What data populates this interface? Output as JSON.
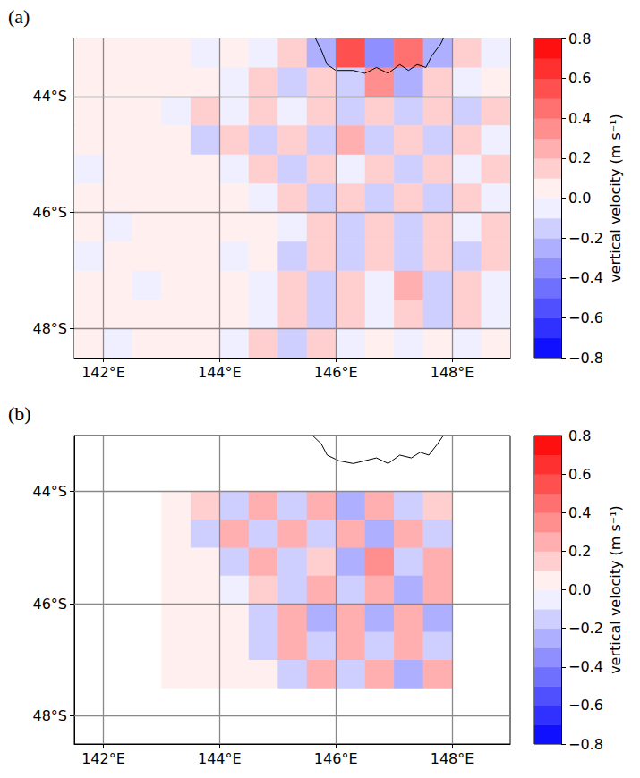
{
  "chart_data": [
    {
      "type": "heatmap",
      "title": "(a)",
      "x": [
        141.75,
        142.25,
        142.75,
        143.25,
        143.75,
        144.25,
        144.75,
        145.25,
        145.75,
        146.25,
        146.75,
        147.25,
        147.75,
        148.25,
        148.75
      ],
      "y": [
        -43.25,
        -43.75,
        -44.25,
        -44.75,
        -45.25,
        -45.75,
        -46.25,
        -46.75,
        -47.25,
        -47.75,
        -48.25
      ],
      "values": [
        [
          0.02,
          0.02,
          0.03,
          0.05,
          -0.1,
          0.08,
          -0.1,
          0.12,
          -0.3,
          0.5,
          -0.4,
          0.45,
          -0.3,
          0.1,
          -0.08
        ],
        [
          0.02,
          0.01,
          0.02,
          0.04,
          0.06,
          -0.08,
          0.1,
          -0.12,
          0.15,
          -0.2,
          0.3,
          -0.25,
          0.12,
          -0.1,
          0.08
        ],
        [
          0.02,
          0.02,
          0.02,
          -0.06,
          0.15,
          -0.1,
          0.12,
          -0.1,
          0.15,
          -0.12,
          0.18,
          -0.15,
          0.1,
          -0.12,
          0.1
        ],
        [
          0.02,
          0.02,
          0.02,
          0.03,
          -0.2,
          0.15,
          -0.12,
          0.1,
          -0.14,
          0.2,
          -0.15,
          0.12,
          -0.18,
          0.15,
          -0.1
        ],
        [
          -0.02,
          0.02,
          0.02,
          0.02,
          0.05,
          -0.08,
          0.12,
          -0.15,
          0.18,
          -0.1,
          0.15,
          -0.2,
          0.12,
          -0.1,
          0.15
        ],
        [
          0.02,
          0.01,
          0.02,
          0.02,
          0.03,
          0.05,
          -0.1,
          0.12,
          -0.15,
          0.12,
          -0.18,
          0.15,
          -0.12,
          0.18,
          -0.1
        ],
        [
          0.02,
          -0.02,
          0.02,
          0.02,
          0.02,
          0.04,
          0.06,
          -0.1,
          0.12,
          -0.15,
          0.1,
          -0.12,
          0.15,
          -0.1,
          0.12
        ],
        [
          -0.02,
          0.02,
          0.02,
          0.02,
          0.03,
          -0.05,
          0.08,
          -0.12,
          0.1,
          -0.15,
          0.18,
          -0.12,
          0.1,
          -0.15,
          0.1
        ],
        [
          0.02,
          0.02,
          -0.02,
          0.02,
          0.02,
          0.05,
          -0.08,
          0.1,
          -0.12,
          0.15,
          -0.1,
          0.2,
          -0.15,
          0.12,
          -0.1
        ],
        [
          0.02,
          0.02,
          0.02,
          0.02,
          0.03,
          0.04,
          -0.06,
          0.1,
          -0.15,
          0.12,
          -0.1,
          0.12,
          -0.15,
          0.1,
          -0.08
        ],
        [
          0.02,
          -0.02,
          0.02,
          0.02,
          0.04,
          -0.1,
          0.15,
          -0.12,
          0.1,
          -0.08,
          0.06,
          -0.08,
          0.05,
          -0.04,
          0.03
        ]
      ],
      "xlim": [
        141.5,
        149
      ],
      "ylim": [
        -48.5,
        -43
      ],
      "xticks": [
        {
          "value": 142,
          "label": "142°E"
        },
        {
          "value": 144,
          "label": "144°E"
        },
        {
          "value": 146,
          "label": "146°E"
        },
        {
          "value": 148,
          "label": "148°E"
        }
      ],
      "yticks": [
        {
          "value": -48,
          "label": "48°S"
        },
        {
          "value": -46,
          "label": "46°S"
        },
        {
          "value": -44,
          "label": "44°S"
        }
      ],
      "grid": true,
      "coastline": [
        [
          145.65,
          -43.0
        ],
        [
          145.75,
          -43.2
        ],
        [
          145.85,
          -43.45
        ],
        [
          146.0,
          -43.55
        ],
        [
          146.3,
          -43.55
        ],
        [
          146.5,
          -43.6
        ],
        [
          146.7,
          -43.5
        ],
        [
          146.9,
          -43.6
        ],
        [
          147.1,
          -43.45
        ],
        [
          147.25,
          -43.55
        ],
        [
          147.4,
          -43.45
        ],
        [
          147.55,
          -43.5
        ],
        [
          147.65,
          -43.3
        ],
        [
          147.8,
          -43.1
        ],
        [
          147.85,
          -43.0
        ]
      ],
      "colorbar": {
        "label": "vertical velocity (m s⁻¹)",
        "range": [
          -0.8,
          0.8
        ],
        "ticks": [
          {
            "value": -0.8,
            "label": "−0.8"
          },
          {
            "value": -0.6,
            "label": "−0.6"
          },
          {
            "value": -0.4,
            "label": "−0.4"
          },
          {
            "value": -0.2,
            "label": "−0.2"
          },
          {
            "value": 0,
            "label": "0.0"
          },
          0.2,
          0.4,
          0.6,
          0.8
        ],
        "levels": [
          -0.8,
          -0.7,
          -0.6,
          -0.5,
          -0.4,
          -0.3,
          -0.2,
          -0.1,
          0,
          0.1,
          0.2,
          0.3,
          0.4,
          0.5,
          0.6,
          0.7,
          0.8
        ],
        "colors": [
          "#1010ff",
          "#3030ff",
          "#5050ff",
          "#7070ff",
          "#8f8fff",
          "#afafff",
          "#cfcfff",
          "#efefff",
          "#ffefef",
          "#ffcfcf",
          "#ffafaf",
          "#ff8f8f",
          "#ff7070",
          "#ff5050",
          "#ff3030",
          "#ff1010"
        ]
      }
    },
    {
      "type": "heatmap",
      "title": "(b)",
      "x": [
        143.25,
        143.75,
        144.25,
        144.75,
        145.25,
        145.75,
        146.25,
        146.75,
        147.25,
        147.75
      ],
      "y": [
        -44.25,
        -44.75,
        -45.25,
        -45.75,
        -46.25,
        -46.75,
        -47.25
      ],
      "values": [
        [
          0.05,
          0.15,
          -0.2,
          0.2,
          -0.15,
          0.2,
          -0.25,
          0.2,
          -0.2,
          0.15
        ],
        [
          0.05,
          -0.15,
          0.2,
          -0.2,
          0.25,
          -0.2,
          0.2,
          -0.3,
          0.25,
          -0.2
        ],
        [
          0.03,
          0.08,
          -0.2,
          0.25,
          -0.2,
          0.15,
          -0.25,
          0.3,
          -0.2,
          0.25
        ],
        [
          0.02,
          0.05,
          -0.1,
          0.15,
          -0.2,
          0.25,
          -0.2,
          0.2,
          -0.3,
          0.2
        ],
        [
          0.02,
          0.03,
          0.05,
          -0.2,
          0.2,
          -0.25,
          0.2,
          -0.25,
          0.2,
          -0.25
        ],
        [
          0.02,
          0.02,
          0.04,
          -0.15,
          0.2,
          -0.2,
          0.25,
          -0.2,
          0.2,
          -0.15
        ],
        [
          0.02,
          0.02,
          0.03,
          0.05,
          -0.2,
          0.25,
          -0.2,
          0.2,
          -0.25,
          0.2
        ]
      ],
      "xlim": [
        141.5,
        149
      ],
      "ylim": [
        -48.5,
        -43
      ],
      "xticks": [
        {
          "value": 142,
          "label": "142°E"
        },
        {
          "value": 144,
          "label": "144°E"
        },
        {
          "value": 146,
          "label": "146°E"
        },
        {
          "value": 148,
          "label": "148°E"
        }
      ],
      "yticks": [
        {
          "value": -48,
          "label": "48°S"
        },
        {
          "value": -46,
          "label": "46°S"
        },
        {
          "value": -44,
          "label": "44°S"
        }
      ],
      "grid": true,
      "coastline": [
        [
          145.6,
          -43.0
        ],
        [
          145.75,
          -43.15
        ],
        [
          145.85,
          -43.35
        ],
        [
          146.05,
          -43.45
        ],
        [
          146.3,
          -43.5
        ],
        [
          146.5,
          -43.45
        ],
        [
          146.7,
          -43.4
        ],
        [
          146.9,
          -43.5
        ],
        [
          147.1,
          -43.35
        ],
        [
          147.3,
          -43.4
        ],
        [
          147.45,
          -43.3
        ],
        [
          147.6,
          -43.35
        ],
        [
          147.75,
          -43.15
        ],
        [
          147.85,
          -43.0
        ]
      ],
      "colorbar": {
        "label": "vertical velocity (m s⁻¹)",
        "range": [
          -0.8,
          0.8
        ],
        "ticks": [
          {
            "value": -0.8,
            "label": "−0.8"
          },
          {
            "value": -0.6,
            "label": "−0.6"
          },
          {
            "value": -0.4,
            "label": "−0.4"
          },
          {
            "value": -0.2,
            "label": "−0.2"
          },
          {
            "value": 0,
            "label": "0.0"
          },
          0.2,
          0.4,
          0.6,
          0.8
        ],
        "levels": [
          -0.8,
          -0.7,
          -0.6,
          -0.5,
          -0.4,
          -0.3,
          -0.2,
          -0.1,
          0,
          0.1,
          0.2,
          0.3,
          0.4,
          0.5,
          0.6,
          0.7,
          0.8
        ],
        "colors": [
          "#1010ff",
          "#3030ff",
          "#5050ff",
          "#7070ff",
          "#8f8fff",
          "#afafff",
          "#cfcfff",
          "#efefff",
          "#ffefef",
          "#ffcfcf",
          "#ffafaf",
          "#ff8f8f",
          "#ff7070",
          "#ff5050",
          "#ff3030",
          "#ff1010"
        ]
      }
    }
  ]
}
